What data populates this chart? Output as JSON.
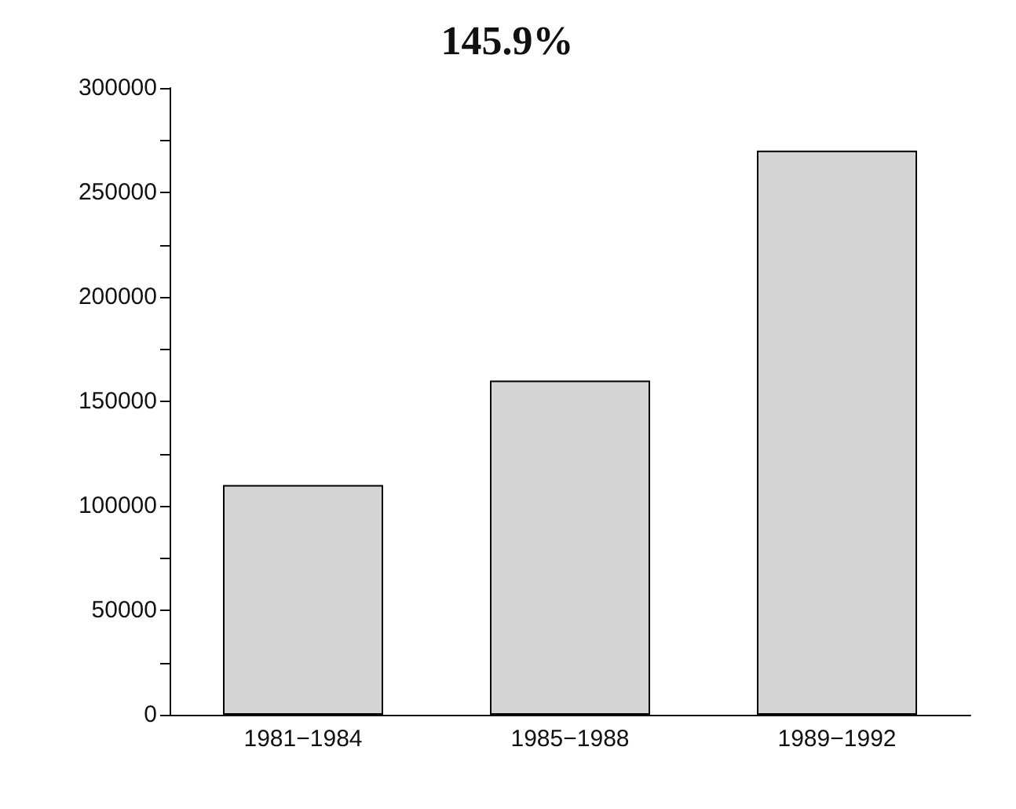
{
  "chart_data": {
    "type": "bar",
    "title": "145.9%",
    "categories": [
      "1981−1984",
      "1985−1988",
      "1989−1992"
    ],
    "values": [
      110000,
      160000,
      270000
    ],
    "color": "#d4d4d4",
    "ylim": [
      0,
      300000
    ],
    "yticks": [
      0,
      {
        "value": 25000,
        "label": null
      },
      50000,
      {
        "value": 75000,
        "label": null
      },
      100000,
      {
        "value": 125000,
        "label": null
      },
      150000,
      {
        "value": 175000,
        "label": null
      },
      200000,
      {
        "value": 225000,
        "label": null
      },
      250000,
      {
        "value": 275000,
        "label": null
      },
      300000
    ],
    "grid": false
  }
}
